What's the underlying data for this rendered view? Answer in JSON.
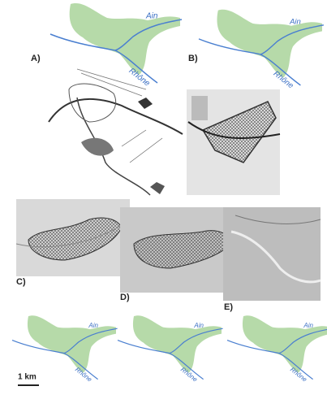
{
  "labels": [
    "A)",
    "B)",
    "C)",
    "D)",
    "E)"
  ],
  "maps": [
    {
      "tributary": "Ain",
      "river": "Rhône"
    },
    {
      "tributary": "Ain",
      "river": "Rhône"
    },
    {
      "tributary": "Ain",
      "river": "Rhône"
    },
    {
      "tributary": "Ain",
      "river": "Rhône"
    },
    {
      "tributary": "Ain",
      "river": "Rhône"
    }
  ],
  "scale_bar": "1 km"
}
